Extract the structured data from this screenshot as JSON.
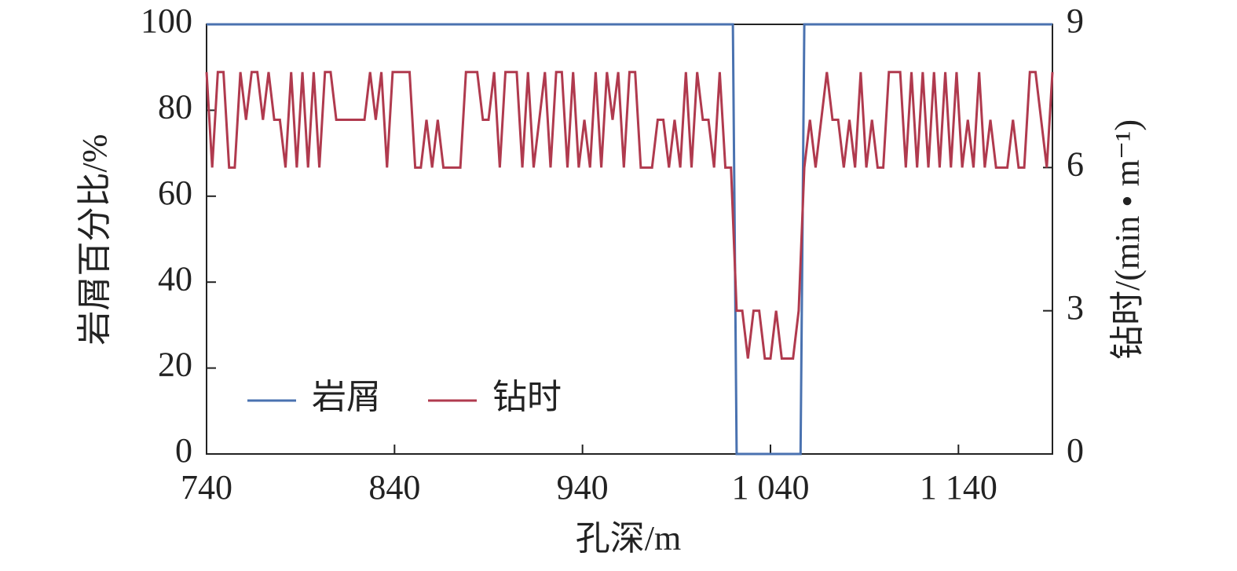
{
  "chart_data": {
    "type": "line",
    "xlabel": "孔深/m",
    "ylabel": "岩屑百分比/%",
    "y2label": "钻时/(min • m⁻¹)",
    "xlim": [
      740,
      1190
    ],
    "xticks": [
      740,
      840,
      940,
      {
        "value": 1040,
        "label": "1 040"
      },
      {
        "value": 1140,
        "label": "1 140"
      }
    ],
    "ylim": [
      0,
      100
    ],
    "yticks": [
      0,
      20,
      40,
      60,
      80,
      100
    ],
    "y2lim": [
      0,
      9
    ],
    "y2ticks": [
      0,
      3,
      6,
      9
    ],
    "legend": "lower left",
    "grid": false,
    "series": [
      {
        "name": "岩屑",
        "color": "#4a72b0",
        "x": [
          740,
          1020,
          1022,
          1056,
          1058,
          1190
        ],
        "values": [
          100,
          100,
          0,
          0,
          100,
          100
        ]
      },
      {
        "name": "钻时",
        "color": "#b03a4e",
        "axis": "y2",
        "x": [
          740,
          743,
          746,
          749,
          752,
          755,
          758,
          761,
          764,
          767,
          770,
          773,
          776,
          779,
          782,
          785,
          788,
          791,
          794,
          797,
          800,
          803,
          806,
          809,
          812,
          815,
          818,
          821,
          824,
          827,
          830,
          833,
          836,
          839,
          842,
          845,
          848,
          851,
          854,
          857,
          860,
          863,
          866,
          869,
          872,
          875,
          878,
          881,
          884,
          887,
          890,
          893,
          896,
          899,
          902,
          905,
          908,
          911,
          914,
          917,
          920,
          923,
          926,
          929,
          932,
          935,
          938,
          941,
          944,
          947,
          950,
          953,
          956,
          959,
          962,
          965,
          968,
          971,
          974,
          977,
          980,
          983,
          986,
          989,
          992,
          995,
          998,
          1001,
          1004,
          1007,
          1010,
          1013,
          1016,
          1019,
          1022,
          1025,
          1028,
          1031,
          1034,
          1037,
          1040,
          1043,
          1046,
          1049,
          1052,
          1055,
          1058,
          1061,
          1064,
          1067,
          1070,
          1073,
          1076,
          1079,
          1082,
          1085,
          1088,
          1091,
          1094,
          1097,
          1100,
          1103,
          1106,
          1109,
          1112,
          1115,
          1118,
          1121,
          1124,
          1127,
          1130,
          1133,
          1136,
          1139,
          1142,
          1145,
          1148,
          1151,
          1154,
          1157,
          1160,
          1163,
          1166,
          1169,
          1172,
          1175,
          1178,
          1181,
          1184,
          1187,
          1190
        ],
        "values": [
          8,
          6,
          8,
          8,
          6,
          6,
          8,
          7,
          8,
          8,
          7,
          8,
          7,
          7,
          6,
          8,
          6,
          8,
          6,
          8,
          6,
          8,
          8,
          7,
          7,
          7,
          7,
          7,
          7,
          8,
          7,
          8,
          6,
          8,
          8,
          8,
          8,
          6,
          6,
          7,
          6,
          7,
          6,
          6,
          6,
          6,
          8,
          8,
          8,
          7,
          7,
          8,
          6,
          8,
          8,
          8,
          6,
          8,
          6,
          7,
          8,
          6,
          8,
          8,
          6,
          8,
          6,
          7,
          6,
          8,
          6,
          8,
          7,
          8,
          6,
          8,
          8,
          6,
          6,
          6,
          7,
          7,
          6,
          7,
          6,
          8,
          6,
          8,
          7,
          7,
          6,
          8,
          6,
          6,
          3,
          3,
          2,
          3,
          3,
          2,
          2,
          3,
          2,
          2,
          2,
          3,
          6,
          7,
          6,
          7,
          8,
          7,
          7,
          6,
          7,
          6,
          8,
          6,
          7,
          6,
          6,
          8,
          8,
          8,
          6,
          8,
          6,
          8,
          6,
          8,
          6,
          8,
          6,
          8,
          6,
          7,
          6,
          8,
          6,
          7,
          6,
          6,
          6,
          7,
          6,
          6,
          8,
          8,
          7,
          6,
          8
        ]
      }
    ]
  }
}
